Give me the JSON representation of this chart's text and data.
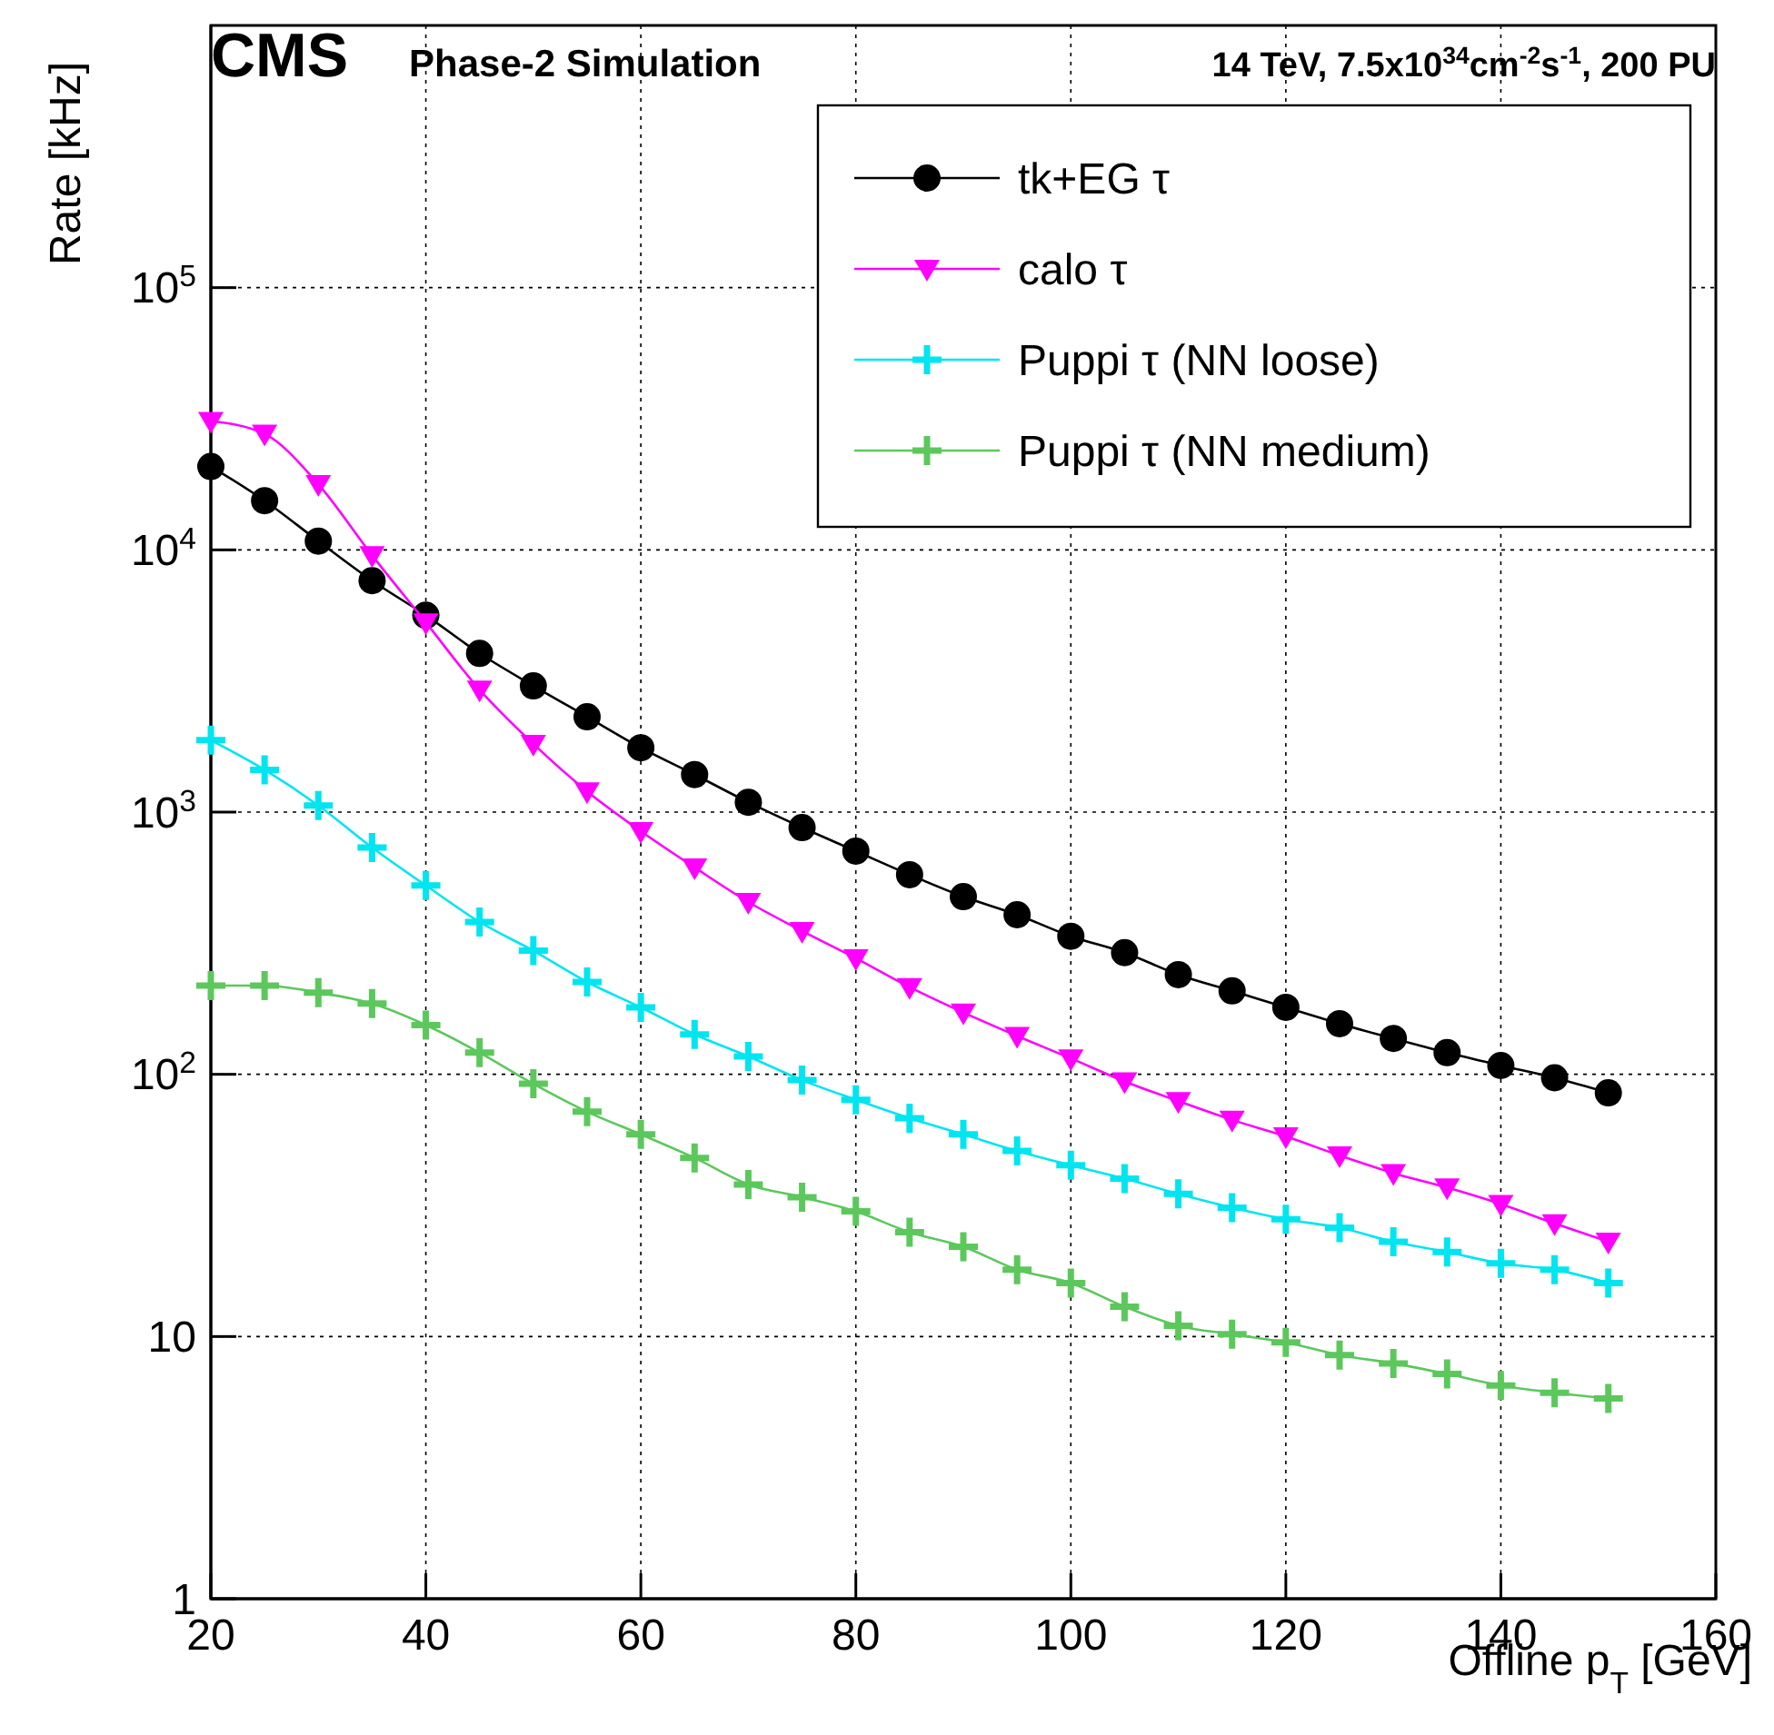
{
  "chart_data": {
    "type": "line",
    "title": "CMS",
    "subtitle": "Phase-2 Simulation",
    "annotations": [
      "14 TeV, 7.5x10$^{34}$cm$^{-2}$s$^{-1}$, 200 PU"
    ],
    "xlabel": "Offline p$_{T}$ [GeV]",
    "ylabel": "Rate [kHz]",
    "x": [
      20,
      25,
      30,
      35,
      40,
      45,
      50,
      55,
      60,
      65,
      70,
      75,
      80,
      85,
      90,
      95,
      100,
      105,
      110,
      115,
      120,
      125,
      130,
      135,
      140,
      145,
      150
    ],
    "series": [
      {
        "name": "tk+EG τ",
        "color": "#000000",
        "marker": "circle",
        "values": [
          20800,
          15400,
          10800,
          7630,
          5630,
          4030,
          3030,
          2310,
          1760,
          1390,
          1090,
          873,
          710,
          577,
          476,
          406,
          336,
          291,
          240,
          208,
          180,
          156,
          137,
          121,
          108,
          97,
          85
        ]
      },
      {
        "name": "calo τ",
        "color": "#ff00ff",
        "marker": "triangle",
        "values": [
          31000,
          27700,
          17800,
          9530,
          5290,
          2930,
          1820,
          1200,
          846,
          615,
          454,
          352,
          277,
          215,
          172,
          140,
          115,
          94,
          79,
          67,
          58,
          49,
          42,
          37,
          32,
          27,
          23
        ]
      },
      {
        "name": "Puppi τ (NN loose)",
        "color": "#00e5f0",
        "marker": "cross",
        "values": [
          1880,
          1450,
          1060,
          733,
          525,
          381,
          296,
          225,
          180,
          142,
          117,
          95,
          80,
          68,
          59,
          51,
          45,
          40,
          35,
          31,
          28,
          26,
          23,
          21,
          19,
          18,
          16
        ]
      },
      {
        "name": "Puppi τ (NN medium)",
        "color": "#5cc85c",
        "marker": "cross",
        "values": [
          218,
          218,
          205,
          186,
          154,
          121,
          92,
          72,
          59,
          48,
          38,
          34,
          30,
          25,
          22,
          18,
          16,
          13,
          11,
          10.2,
          9.5,
          8.5,
          7.9,
          7.2,
          6.5,
          6.1,
          5.8
        ]
      }
    ],
    "xlim": [
      20,
      160
    ],
    "xticks": [
      20,
      40,
      60,
      80,
      100,
      120,
      140,
      160
    ],
    "ylim": [
      1,
      1000000
    ],
    "log": true,
    "yticks": [
      1,
      10,
      {
        "value": 100,
        "label": "10$^{2}$"
      },
      {
        "value": 1000,
        "label": "10$^{3}$"
      },
      {
        "value": 10000,
        "label": "10$^{4}$"
      },
      {
        "value": 100000,
        "label": "10$^{5}$"
      }
    ],
    "grid": true,
    "legend": "top right",
    "line_style": "solid"
  }
}
